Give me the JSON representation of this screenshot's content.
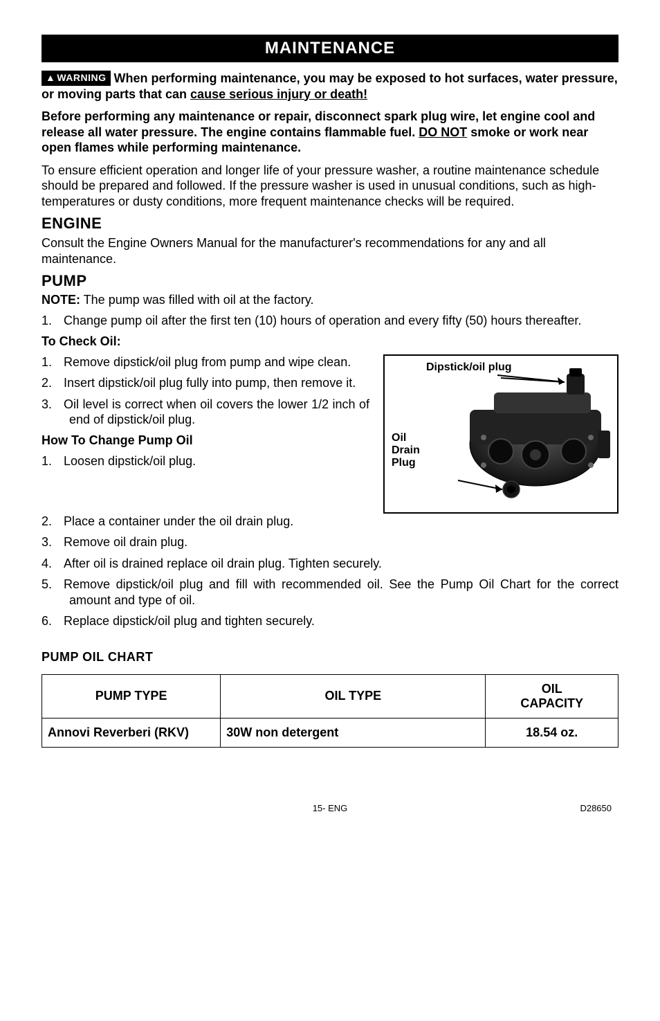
{
  "section_header": "MAINTENANCE",
  "warning_badge": "WARNING",
  "intro": {
    "bold_part1": "When performing maintenance, you may be exposed to hot surfaces, water pressure, or moving parts that can ",
    "underline1": "cause serious injury or death!"
  },
  "before": {
    "text1": "Before performing any maintenance or repair, disconnect spark plug wire, let engine cool and release all water pressure. The engine contains flammable fuel.  ",
    "underline": "DO NOT",
    "text2": " smoke or work near open flames while performing maintenance."
  },
  "ensure_para": "To ensure efficient operation and longer life of your pressure washer, a routine maintenance schedule should be prepared and followed. If the pressure washer is used in unusual conditions, such as high-temperatures or dusty conditions, more frequent maintenance checks will be required.",
  "engine": {
    "heading": "ENGINE",
    "para": "Consult the Engine Owners Manual for the manufacturer's recommendations for any and all maintenance."
  },
  "pump": {
    "heading": "PUMP",
    "note_label": "NOTE:",
    "note_text": " The pump was filled with oil at the factory.",
    "step1": "Change pump oil after the first ten (10) hours of operation and every fifty (50) hours thereafter."
  },
  "check_oil": {
    "heading": "To Check Oil:",
    "items": [
      "Remove dipstick/oil plug from pump and wipe clean.",
      "Insert dipstick/oil plug fully into pump, then remove it.",
      "Oil level is correct when oil covers the lower 1/2 inch of end of dipstick/oil plug."
    ]
  },
  "change_oil": {
    "heading": "How To Change Pump Oil",
    "items_left": [
      "Loosen dipstick/oil plug."
    ],
    "items_full": [
      "Place a container under the oil drain plug.",
      "Remove oil drain plug.",
      "After oil is drained replace oil drain plug. Tighten securely.",
      "Remove dipstick/oil plug and fill with recommended oil.  See the Pump Oil Chart for the correct amount and type of oil.",
      "Replace dipstick/oil plug and tighten securely."
    ]
  },
  "figure": {
    "label_top": "Dipstick/oil plug",
    "label_side1": "Oil",
    "label_side2": "Drain",
    "label_side3": "Plug"
  },
  "chart": {
    "title": "PUMP OIL CHART",
    "headers": [
      "PUMP TYPE",
      "OIL TYPE",
      "OIL CAPACITY"
    ],
    "row": [
      "Annovi Reverberi (RKV)",
      "30W non detergent",
      "18.54 oz."
    ]
  },
  "footer": {
    "center": "15- ENG",
    "right": "D28650"
  },
  "colors": {
    "black": "#000000",
    "white": "#ffffff"
  }
}
